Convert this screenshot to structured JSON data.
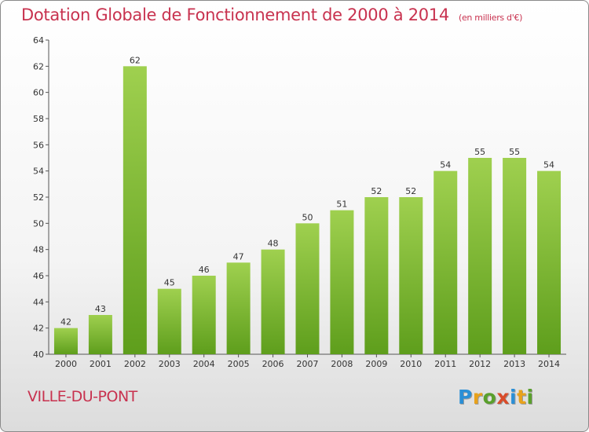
{
  "header": {
    "title": "Dotation Globale de Fonctionnement de 2000 à 2014",
    "unit_note": "(en milliers d'€)"
  },
  "footer": {
    "commune": "VILLE-DU-PONT",
    "logo_text": "Proxiti"
  },
  "colors": {
    "title": "#c8324f",
    "bar_light": "#9fd04f",
    "bar_dark": "#5e9e1c"
  },
  "chart_data": {
    "type": "bar",
    "categories": [
      "2000",
      "2001",
      "2002",
      "2003",
      "2004",
      "2005",
      "2006",
      "2007",
      "2008",
      "2009",
      "2010",
      "2011",
      "2012",
      "2013",
      "2014"
    ],
    "values": [
      42,
      43,
      62,
      45,
      46,
      47,
      48,
      50,
      51,
      52,
      52,
      54,
      55,
      55,
      54
    ],
    "title": "Dotation Globale de Fonctionnement de 2000 à 2014",
    "ylim": [
      40,
      64
    ],
    "yticks": [
      40,
      42,
      44,
      46,
      48,
      50,
      52,
      54,
      56,
      58,
      60,
      62,
      64
    ],
    "grid": false,
    "data_labels": true
  }
}
